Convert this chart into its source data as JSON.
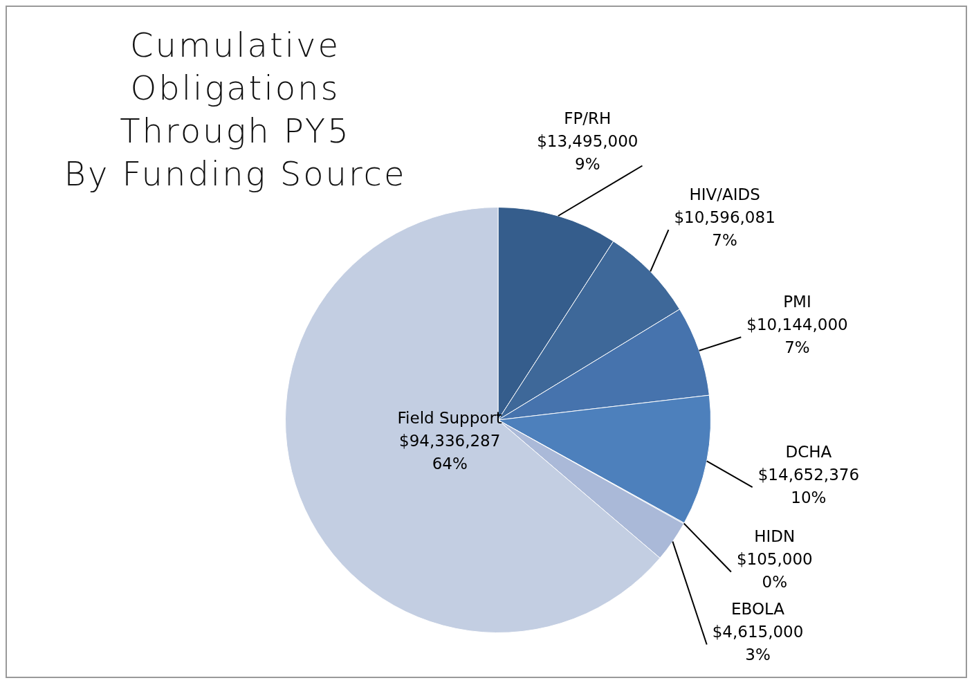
{
  "chart_data": {
    "type": "pie",
    "title": "Cumulative Obligations\nThrough PY5\nBy Funding Source",
    "categories": [
      "FP/RH",
      "HIV/AIDS",
      "PMI",
      "DCHA",
      "HIDN",
      "EBOLA",
      "Field Support"
    ],
    "values": [
      13495000,
      10596081,
      10144000,
      14652376,
      105000,
      4615000,
      94336287
    ],
    "value_labels": [
      "$13,495,000\n9%",
      "$10,596,081\n7%",
      "$10,144,000\n7%",
      "$14,652,376\n10%",
      "$105,000\n0%",
      "$4,615,000\n3%",
      "$94,336,287\n64%"
    ],
    "colors": [
      "#355d8c",
      "#3e6899",
      "#4673ad",
      "#4d80bc",
      "#7f9fce",
      "#aab9d8",
      "#c3cee2"
    ],
    "legend": false
  }
}
